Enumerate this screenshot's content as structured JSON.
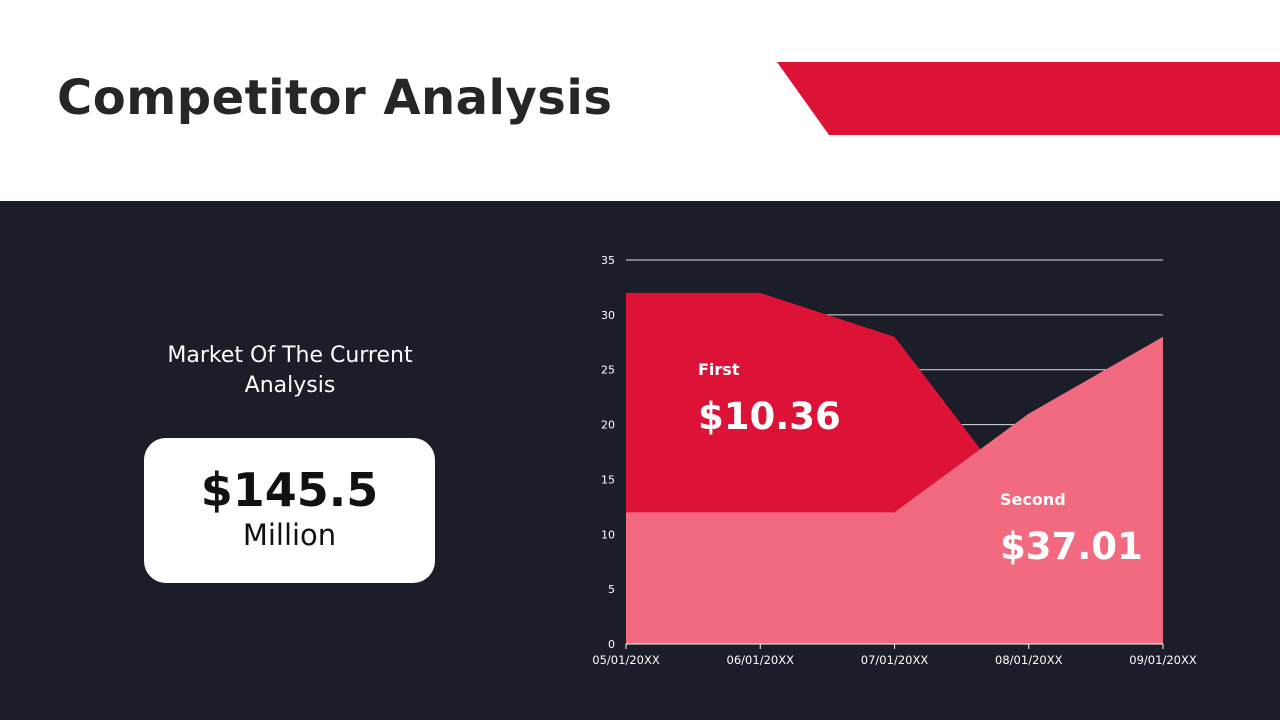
{
  "header": {
    "title": "Competitor Analysis"
  },
  "colors": {
    "accent": "#dc1236",
    "secondary": "#f26a80",
    "background": "#1b1d29",
    "header_bg": "#ffffff",
    "title_text": "#262626"
  },
  "summary": {
    "label": "Market Of The Current Analysis",
    "value": "$145.5",
    "unit": "Million"
  },
  "chart_data": {
    "type": "area",
    "x": [
      "05/01/20XX",
      "06/01/20XX",
      "07/01/20XX",
      "08/01/20XX",
      "09/01/20XX"
    ],
    "series": [
      {
        "name": "First",
        "values": [
          32,
          32,
          28,
          12,
          12
        ],
        "color": "#dc1236"
      },
      {
        "name": "Second",
        "values": [
          12,
          12,
          12,
          21,
          28
        ],
        "color": "#f26a80"
      }
    ],
    "ylim": [
      0,
      35
    ],
    "yticks": [
      0,
      5,
      10,
      15,
      20,
      25,
      30,
      35
    ],
    "grid": true,
    "annotations": [
      {
        "series": "First",
        "label": "First",
        "value": "$10.36"
      },
      {
        "series": "Second",
        "label": "Second",
        "value": "$37.01"
      }
    ]
  }
}
